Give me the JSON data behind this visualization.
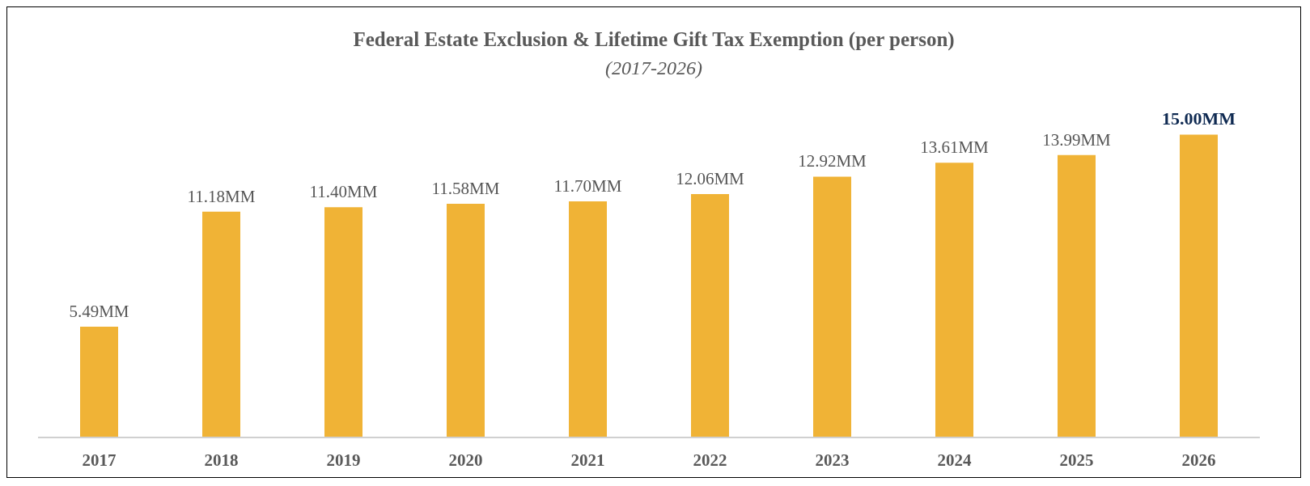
{
  "chart_data": {
    "type": "bar",
    "title": "Federal Estate Exclusion & Lifetime Gift Tax Exemption (per person)",
    "subtitle": "(2017-2026)",
    "categories": [
      "2017",
      "2018",
      "2019",
      "2020",
      "2021",
      "2022",
      "2023",
      "2024",
      "2025",
      "2026"
    ],
    "values": [
      5.49,
      11.18,
      11.4,
      11.58,
      11.7,
      12.06,
      12.92,
      13.61,
      13.99,
      15.0
    ],
    "value_labels": [
      "5.49MM",
      "11.18MM",
      "11.40MM",
      "11.58MM",
      "11.70MM",
      "12.06MM",
      "12.92MM",
      "13.61MM",
      "13.99MM",
      "15.00MM"
    ],
    "color": "#f0b336",
    "grid": false,
    "legend": false
  }
}
